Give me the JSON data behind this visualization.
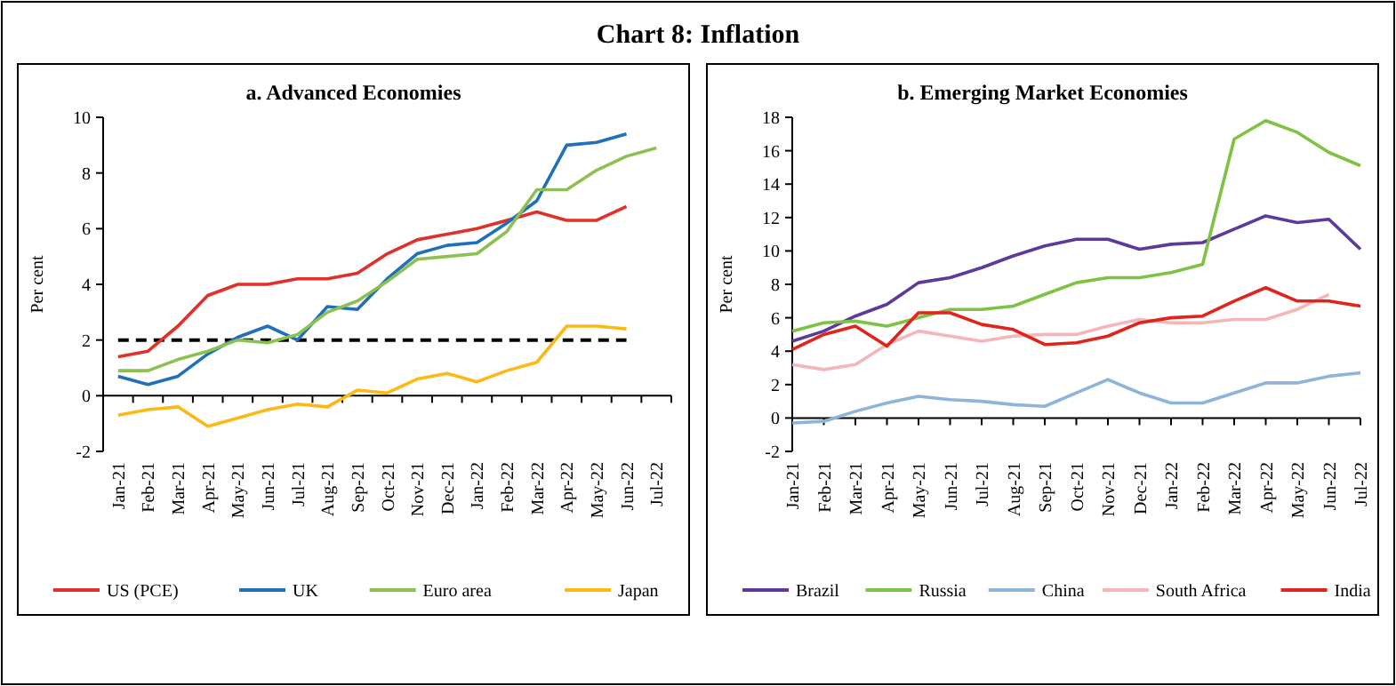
{
  "chart_data": [
    {
      "type": "other",
      "title": "Chart 8: Inflation"
    },
    {
      "type": "line",
      "title": "a. Advanced Economies",
      "ylabel": "Per cent",
      "categories": [
        "Jan-21",
        "Feb-21",
        "Mar-21",
        "Apr-21",
        "May-21",
        "Jun-21",
        "Jul-21",
        "Aug-21",
        "Sep-21",
        "Oct-21",
        "Nov-21",
        "Dec-21",
        "Jan-22",
        "Feb-22",
        "Mar-22",
        "Apr-22",
        "May-22",
        "Jun-22",
        "Jul-22"
      ],
      "ylim": [
        -2,
        10
      ],
      "yticks": [
        -2,
        0,
        2,
        4,
        6,
        8,
        10
      ],
      "legend": "bottom",
      "ref_lines": [
        {
          "axis": "y",
          "value": 2,
          "color": "#000000",
          "line_style": "dashed"
        }
      ],
      "series": [
        {
          "name": "US (PCE)",
          "color": "#e0302a",
          "values": [
            1.4,
            1.6,
            2.5,
            3.6,
            4.0,
            4.0,
            4.2,
            4.2,
            4.4,
            5.1,
            5.6,
            5.8,
            6.0,
            6.3,
            6.6,
            6.3,
            6.3,
            6.8,
            null
          ]
        },
        {
          "name": "UK",
          "color": "#1f6fba",
          "values": [
            0.7,
            0.4,
            0.7,
            1.5,
            2.1,
            2.5,
            2.0,
            3.2,
            3.1,
            4.2,
            5.1,
            5.4,
            5.5,
            6.2,
            7.0,
            9.0,
            9.1,
            9.4,
            null
          ]
        },
        {
          "name": "Euro area",
          "color": "#8cc152",
          "values": [
            0.9,
            0.9,
            1.3,
            1.6,
            2.0,
            1.9,
            2.2,
            3.0,
            3.4,
            4.1,
            4.9,
            5.0,
            5.1,
            5.9,
            7.4,
            7.4,
            8.1,
            8.6,
            8.9
          ]
        },
        {
          "name": "Japan",
          "color": "#fdb913",
          "values": [
            -0.7,
            -0.5,
            -0.4,
            -1.1,
            -0.8,
            -0.5,
            -0.3,
            -0.4,
            0.2,
            0.1,
            0.6,
            0.8,
            0.5,
            0.9,
            1.2,
            2.5,
            2.5,
            2.4,
            null
          ]
        }
      ]
    },
    {
      "type": "line",
      "title": "b. Emerging Market Economies",
      "ylabel": "Per cent",
      "categories": [
        "Jan-21",
        "Feb-21",
        "Mar-21",
        "Apr-21",
        "May-21",
        "Jun-21",
        "Jul-21",
        "Aug-21",
        "Sep-21",
        "Oct-21",
        "Nov-21",
        "Dec-21",
        "Jan-22",
        "Feb-22",
        "Mar-22",
        "Apr-22",
        "May-22",
        "Jun-22",
        "Jul-22"
      ],
      "ylim": [
        -2,
        18
      ],
      "yticks": [
        -2,
        0,
        2,
        4,
        6,
        8,
        10,
        12,
        14,
        16,
        18
      ],
      "legend": "bottom",
      "series": [
        {
          "name": "Brazil",
          "color": "#5b3a9b",
          "values": [
            4.6,
            5.2,
            6.1,
            6.8,
            8.1,
            8.4,
            9.0,
            9.7,
            10.3,
            10.7,
            10.7,
            10.1,
            10.4,
            10.5,
            11.3,
            12.1,
            11.7,
            11.9,
            10.1
          ]
        },
        {
          "name": "Russia",
          "color": "#7dc242",
          "values": [
            5.2,
            5.7,
            5.8,
            5.5,
            6.0,
            6.5,
            6.5,
            6.7,
            7.4,
            8.1,
            8.4,
            8.4,
            8.7,
            9.2,
            16.7,
            17.8,
            17.1,
            15.9,
            15.1
          ]
        },
        {
          "name": "China",
          "color": "#8fb4d9",
          "values": [
            -0.3,
            -0.2,
            0.4,
            0.9,
            1.3,
            1.1,
            1.0,
            0.8,
            0.7,
            1.5,
            2.3,
            1.5,
            0.9,
            0.9,
            1.5,
            2.1,
            2.1,
            2.5,
            2.7
          ]
        },
        {
          "name": "South Africa",
          "color": "#f4b6b8",
          "values": [
            3.2,
            2.9,
            3.2,
            4.4,
            5.2,
            4.9,
            4.6,
            4.9,
            5.0,
            5.0,
            5.5,
            5.9,
            5.7,
            5.7,
            5.9,
            5.9,
            6.5,
            7.4,
            null
          ]
        },
        {
          "name": "India",
          "color": "#e0241c",
          "values": [
            4.1,
            5.0,
            5.5,
            4.3,
            6.3,
            6.3,
            5.6,
            5.3,
            4.4,
            4.5,
            4.9,
            5.7,
            6.0,
            6.1,
            7.0,
            7.8,
            7.0,
            7.0,
            6.7
          ]
        }
      ]
    }
  ]
}
